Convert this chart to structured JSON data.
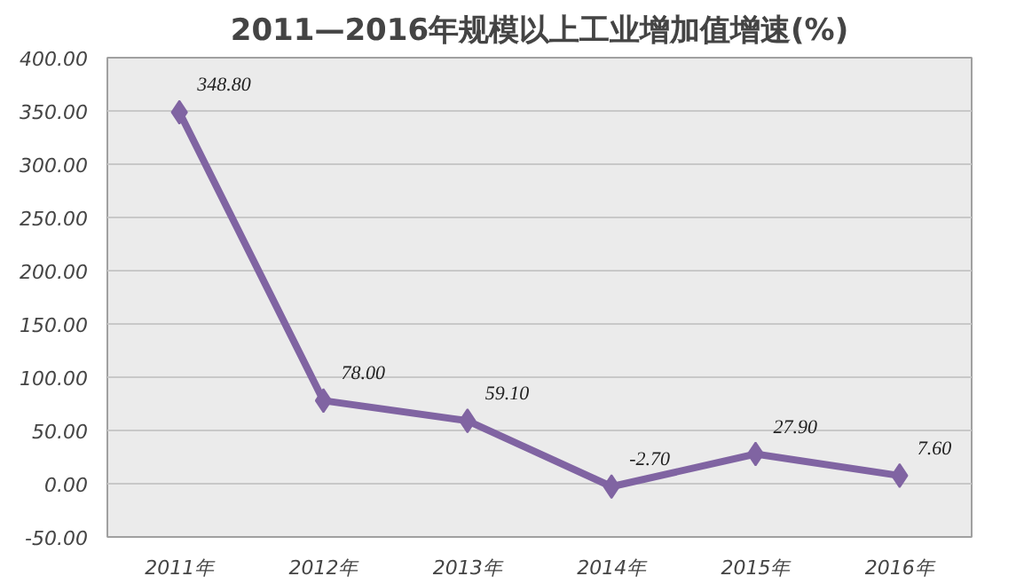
{
  "chart_data": {
    "type": "line",
    "title": "2011—2016年规模以上工业增加值增速(%)",
    "categories": [
      "2011年",
      "2012年",
      "2013年",
      "2014年",
      "2015年",
      "2016年"
    ],
    "series": [
      {
        "color": "#8064a2",
        "values": [
          348.8,
          78.0,
          59.1,
          -2.7,
          27.9,
          7.6
        ],
        "value_labels": [
          "348.80",
          "78.00",
          "59.10",
          "-2.70",
          "27.90",
          "7.60"
        ]
      }
    ],
    "ylim": [
      -50,
      400
    ],
    "yticks": [
      {
        "value": -50,
        "label": "-50.00"
      },
      {
        "value": 0,
        "label": "0.00"
      },
      {
        "value": 50,
        "label": "50.00"
      },
      {
        "value": 100,
        "label": "100.00"
      },
      {
        "value": 150,
        "label": "150.00"
      },
      {
        "value": 200,
        "label": "200.00"
      },
      {
        "value": 250,
        "label": "250.00"
      },
      {
        "value": 300,
        "label": "300.00"
      },
      {
        "value": 350,
        "label": "350.00"
      },
      {
        "value": 400,
        "label": "400.00"
      }
    ],
    "grid": "y",
    "marker": "diamond",
    "line_style": "solid"
  }
}
